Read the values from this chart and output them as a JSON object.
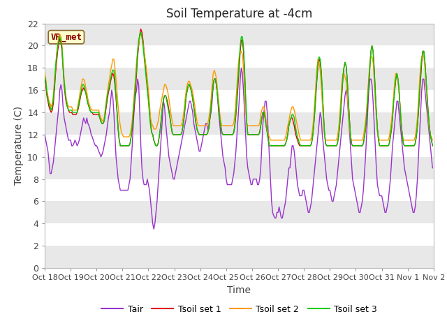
{
  "title": "Soil Temperature at -4cm",
  "xlabel": "Time",
  "ylabel": "Temperature (C)",
  "ylim": [
    0,
    22
  ],
  "yticks": [
    0,
    2,
    4,
    6,
    8,
    10,
    12,
    14,
    16,
    18,
    20,
    22
  ],
  "xtick_labels": [
    "Oct 18",
    "Oct 19",
    "Oct 20",
    "Oct 21",
    "Oct 22",
    "Oct 23",
    "Oct 24",
    "Oct 25",
    "Oct 26",
    "Oct 27",
    "Oct 28",
    "Oct 29",
    "Oct 30",
    "Oct 31",
    "Nov 1",
    "Nov 2"
  ],
  "xtick_positions": [
    0,
    24,
    48,
    72,
    96,
    120,
    144,
    168,
    192,
    216,
    240,
    264,
    288,
    312,
    336,
    360
  ],
  "line_colors": {
    "Tair": "#9933cc",
    "Tsoil1": "#dd0000",
    "Tsoil2": "#ff9900",
    "Tsoil3": "#00cc00"
  },
  "legend_labels": [
    "Tair",
    "Tsoil set 1",
    "Tsoil set 2",
    "Tsoil set 3"
  ],
  "annotation_text": "VR_met",
  "linewidth": 1.0,
  "fig_bg": "#ffffff",
  "plot_bg": "#ffffff",
  "band_color": "#e8e8e8"
}
